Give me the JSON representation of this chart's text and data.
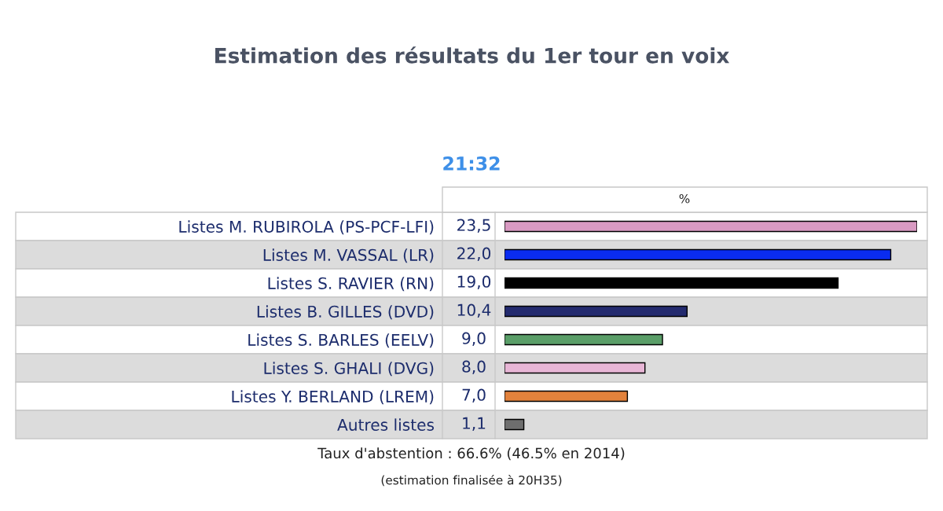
{
  "chart_data": {
    "type": "bar",
    "orientation": "horizontal",
    "title": "Estimation des résultats du 1er tour en voix",
    "subtitle": "21:32",
    "xlabel": "%",
    "categories": [
      "Listes M. RUBIROLA (PS-PCF-LFI)",
      "Listes M. VASSAL (LR)",
      "Listes S. RAVIER (RN)",
      "Listes B. GILLES (DVD)",
      "Listes S. BARLES (EELV)",
      "Listes S. GHALI (DVG)",
      "Listes Y. BERLAND (LREM)",
      "Autres listes"
    ],
    "values": [
      23.5,
      22.0,
      19.0,
      10.4,
      9.0,
      8.0,
      7.0,
      1.1
    ],
    "value_labels": [
      "23,5",
      "22,0",
      "19,0",
      "10,4",
      "9,0",
      "8,0",
      "7,0",
      "1,1"
    ],
    "colors": [
      "#d99ac2",
      "#0a2cf0",
      "#000000",
      "#232a6e",
      "#5a9e68",
      "#e8b6d6",
      "#e2823c",
      "#6e6e6e"
    ],
    "tick_labels": "y",
    "grid": false,
    "legend": false,
    "annotations": [
      "Taux d'abstention : 66.6% (46.5% en 2014)",
      "(estimation finalisée à 20H35)"
    ]
  }
}
